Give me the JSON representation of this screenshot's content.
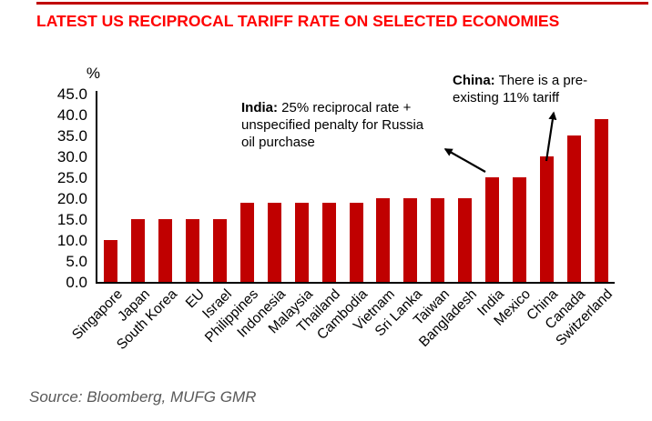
{
  "page": {
    "title": "LATEST US RECIPROCAL TARIFF RATE ON SELECTED ECONOMIES",
    "source": "Source: Bloomberg, MUFG GMR"
  },
  "colors": {
    "title_red": "#FF0000",
    "bar_red": "#C00000",
    "top_rule_red": "#C00000",
    "axis_black": "#000000",
    "source_gray": "#595959"
  },
  "chart_data": {
    "type": "bar",
    "title": "LATEST US RECIPROCAL TARIFF RATE ON SELECTED ECONOMIES",
    "unit_label": "%",
    "categories": [
      "Singapore",
      "Japan",
      "South Korea",
      "EU",
      "Israel",
      "Philippines",
      "Indonesia",
      "Malaysia",
      "Thailand",
      "Cambodia",
      "Vietnam",
      "Sri Lanka",
      "Taiwan",
      "Bangladesh",
      "India",
      "Mexico",
      "China",
      "Canada",
      "Switzerland"
    ],
    "values": [
      10,
      15,
      15,
      15,
      15,
      19,
      19,
      19,
      19,
      19,
      20,
      20,
      20,
      20,
      25,
      25,
      30,
      35,
      39
    ],
    "xlabel": "",
    "ylabel": "%",
    "ylim": [
      0,
      45
    ],
    "ytick_interval": 5,
    "ytick_labels": [
      "0.0",
      "5.0",
      "10.0",
      "15.0",
      "20.0",
      "25.0",
      "30.0",
      "35.0",
      "40.0",
      "45.0"
    ],
    "grid": false,
    "legend": false,
    "bar_color": "#C00000",
    "annotations": [
      {
        "target": "India",
        "bold": "India:",
        "line1_rest": " 25% reciprocal rate +",
        "line2": "unspecified penalty for Russia",
        "line3": "oil purchase"
      },
      {
        "target": "China",
        "bold": "China:",
        "line1_rest": " There is a pre-",
        "line2": "existing 11% tariff"
      }
    ]
  }
}
